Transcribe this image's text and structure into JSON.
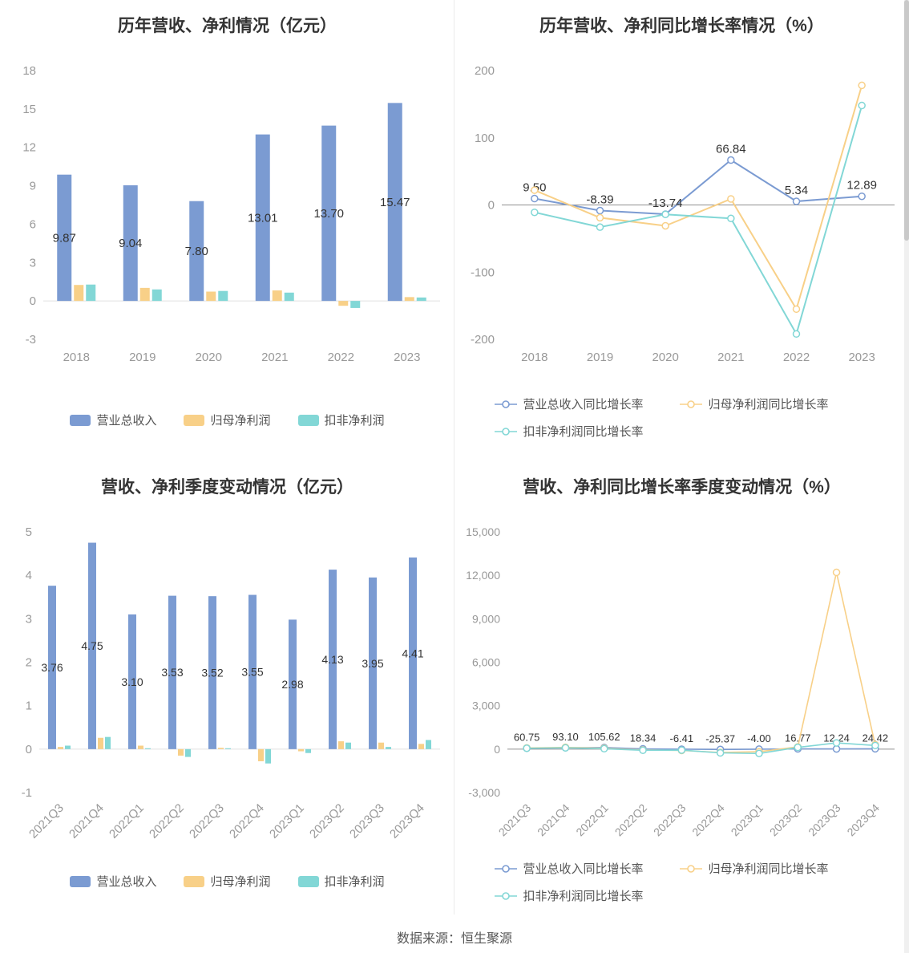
{
  "page": {
    "footer": "数据来源：恒生聚源"
  },
  "colors": {
    "revenue_blue": "#7b9bd2",
    "net_profit_orange": "#f8d088",
    "non_gaap_teal": "#82d7d6",
    "value_label": "#333333",
    "axis_text": "#999999"
  },
  "chart_data": [
    {
      "id": "annual-values",
      "type": "bar",
      "title": "历年营收、净利情况（亿元）",
      "categories": [
        "2018",
        "2019",
        "2020",
        "2021",
        "2022",
        "2023"
      ],
      "series": [
        {
          "name": "营业总收入",
          "color": "#7b9bd2",
          "values": [
            9.87,
            9.04,
            7.8,
            13.01,
            13.7,
            15.47
          ],
          "labels": [
            "9.87",
            "9.04",
            "7.80",
            "13.01",
            "13.70",
            "15.47"
          ]
        },
        {
          "name": "归母净利润",
          "color": "#f8d088",
          "values": [
            1.25,
            1.02,
            0.73,
            0.82,
            -0.38,
            0.3
          ]
        },
        {
          "name": "扣非净利润",
          "color": "#82d7d6",
          "values": [
            1.28,
            0.9,
            0.78,
            0.65,
            -0.55,
            0.27
          ]
        }
      ],
      "ylim": [
        -3,
        18
      ],
      "yticks": [
        -3,
        0,
        3,
        6,
        9,
        12,
        15,
        18
      ],
      "ytick_labels": [
        "-3",
        "0",
        "3",
        "6",
        "9",
        "12",
        "15",
        "18"
      ],
      "grid": false,
      "legend_position": "bottom"
    },
    {
      "id": "annual-growth",
      "type": "line",
      "title": "历年营收、净利同比增长率情况（%）",
      "categories": [
        "2018",
        "2019",
        "2020",
        "2021",
        "2022",
        "2023"
      ],
      "series": [
        {
          "name": "营业总收入同比增长率",
          "color": "#7b9bd2",
          "values": [
            9.5,
            -8.39,
            -13.74,
            66.84,
            5.34,
            12.89
          ],
          "labels": [
            "9.50",
            "-8.39",
            "-13.74",
            "66.84",
            "5.34",
            "12.89"
          ]
        },
        {
          "name": "归母净利润同比增长率",
          "color": "#f8d088",
          "values": [
            22,
            -19,
            -31,
            9,
            -155,
            178
          ]
        },
        {
          "name": "扣非净利润同比增长率",
          "color": "#82d7d6",
          "values": [
            -11,
            -33,
            -14,
            -20,
            -192,
            148
          ]
        }
      ],
      "ylim": [
        -200,
        200
      ],
      "yticks": [
        -200,
        -100,
        0,
        100,
        200
      ],
      "ytick_labels": [
        "-200",
        "-100",
        "0",
        "100",
        "200"
      ],
      "grid": false,
      "legend_position": "bottom"
    },
    {
      "id": "quarterly-values",
      "type": "bar",
      "title": "营收、净利季度变动情况（亿元）",
      "categories": [
        "2021Q3",
        "2021Q4",
        "2022Q1",
        "2022Q2",
        "2022Q3",
        "2022Q4",
        "2023Q1",
        "2023Q2",
        "2023Q3",
        "2023Q4"
      ],
      "series": [
        {
          "name": "营业总收入",
          "color": "#7b9bd2",
          "values": [
            3.76,
            4.75,
            3.1,
            3.53,
            3.52,
            3.55,
            2.98,
            4.13,
            3.95,
            4.41
          ],
          "labels": [
            "3.76",
            "4.75",
            "3.10",
            "3.53",
            "3.52",
            "3.55",
            "2.98",
            "4.13",
            "3.95",
            "4.41"
          ]
        },
        {
          "name": "归母净利润",
          "color": "#f8d088",
          "values": [
            0.05,
            0.26,
            0.08,
            -0.15,
            0.03,
            -0.28,
            -0.05,
            0.18,
            0.15,
            0.12
          ]
        },
        {
          "name": "扣非净利润",
          "color": "#82d7d6",
          "values": [
            0.08,
            0.28,
            0.02,
            -0.18,
            0.02,
            -0.33,
            -0.09,
            0.15,
            0.05,
            0.21
          ]
        }
      ],
      "ylim": [
        -1,
        5
      ],
      "yticks": [
        -1,
        0,
        1,
        2,
        3,
        4,
        5
      ],
      "ytick_labels": [
        "-1",
        "0",
        "1",
        "2",
        "3",
        "4",
        "5"
      ],
      "grid": false,
      "legend_position": "bottom"
    },
    {
      "id": "quarterly-growth",
      "type": "line",
      "title": "营收、净利同比增长率季度变动情况（%）",
      "categories": [
        "2021Q3",
        "2021Q4",
        "2022Q1",
        "2022Q2",
        "2022Q3",
        "2022Q4",
        "2023Q1",
        "2023Q2",
        "2023Q3",
        "2023Q4"
      ],
      "series": [
        {
          "name": "营业总收入同比增长率",
          "color": "#7b9bd2",
          "values": [
            60.75,
            93.1,
            105.62,
            18.34,
            -6.41,
            -25.37,
            -4.0,
            16.77,
            12.24,
            24.42
          ],
          "labels": [
            "60.75",
            "93.10",
            "105.62",
            "18.34",
            "-6.41",
            "-25.37",
            "-4.00",
            "16.77",
            "12.24",
            "24.42"
          ]
        },
        {
          "name": "归母净利润同比增长率",
          "color": "#f8d088",
          "values": [
            80,
            120,
            60,
            -60,
            -90,
            -230,
            -180,
            150,
            12200,
            300
          ]
        },
        {
          "name": "扣非净利润同比增长率",
          "color": "#82d7d6",
          "values": [
            60,
            90,
            30,
            -80,
            -70,
            -260,
            -300,
            120,
            430,
            250
          ]
        }
      ],
      "ylim": [
        -3000,
        15000
      ],
      "yticks": [
        -3000,
        0,
        3000,
        6000,
        9000,
        12000,
        15000
      ],
      "ytick_labels": [
        "-3,000",
        "0",
        "3,000",
        "6,000",
        "9,000",
        "12,000",
        "15,000"
      ],
      "grid": false,
      "legend_position": "bottom"
    }
  ]
}
